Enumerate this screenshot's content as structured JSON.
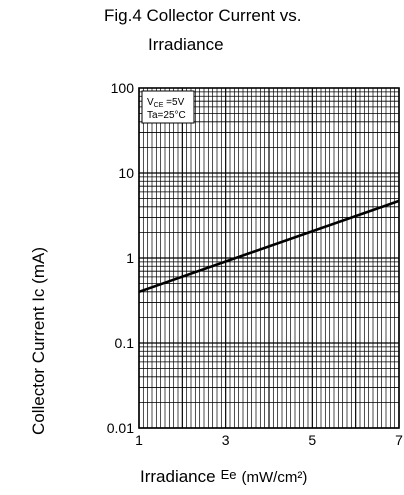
{
  "chart_data": {
    "type": "line",
    "title_line1": "Fig.4  Collector Current vs.",
    "title_line2": "Irradiance",
    "xlabel": "Irradiance",
    "xlabel_symbol": "Ee",
    "xlabel_unit": "(mW/cm²)",
    "ylabel": "Collector  Current  Ic  (mA)",
    "x_scale": "linear",
    "y_scale": "log",
    "xlim": [
      1,
      7
    ],
    "ylim": [
      0.01,
      100
    ],
    "x_ticks": [
      1,
      3,
      5,
      7
    ],
    "x_tick_labels": [
      "1",
      "3",
      "5",
      "7"
    ],
    "y_ticks": [
      0.01,
      0.1,
      1,
      10,
      100
    ],
    "y_tick_labels": [
      "0.01",
      "0.1",
      "1",
      "10",
      "100"
    ],
    "grid": true,
    "annotation_line1": "V",
    "annotation_sub": "CE",
    "annotation_line1_rest": " =5V",
    "annotation_line2": "Ta=25°C",
    "series": [
      {
        "x": [
          1,
          7
        ],
        "y": [
          0.4,
          4.7
        ]
      }
    ],
    "color": "#000000"
  }
}
